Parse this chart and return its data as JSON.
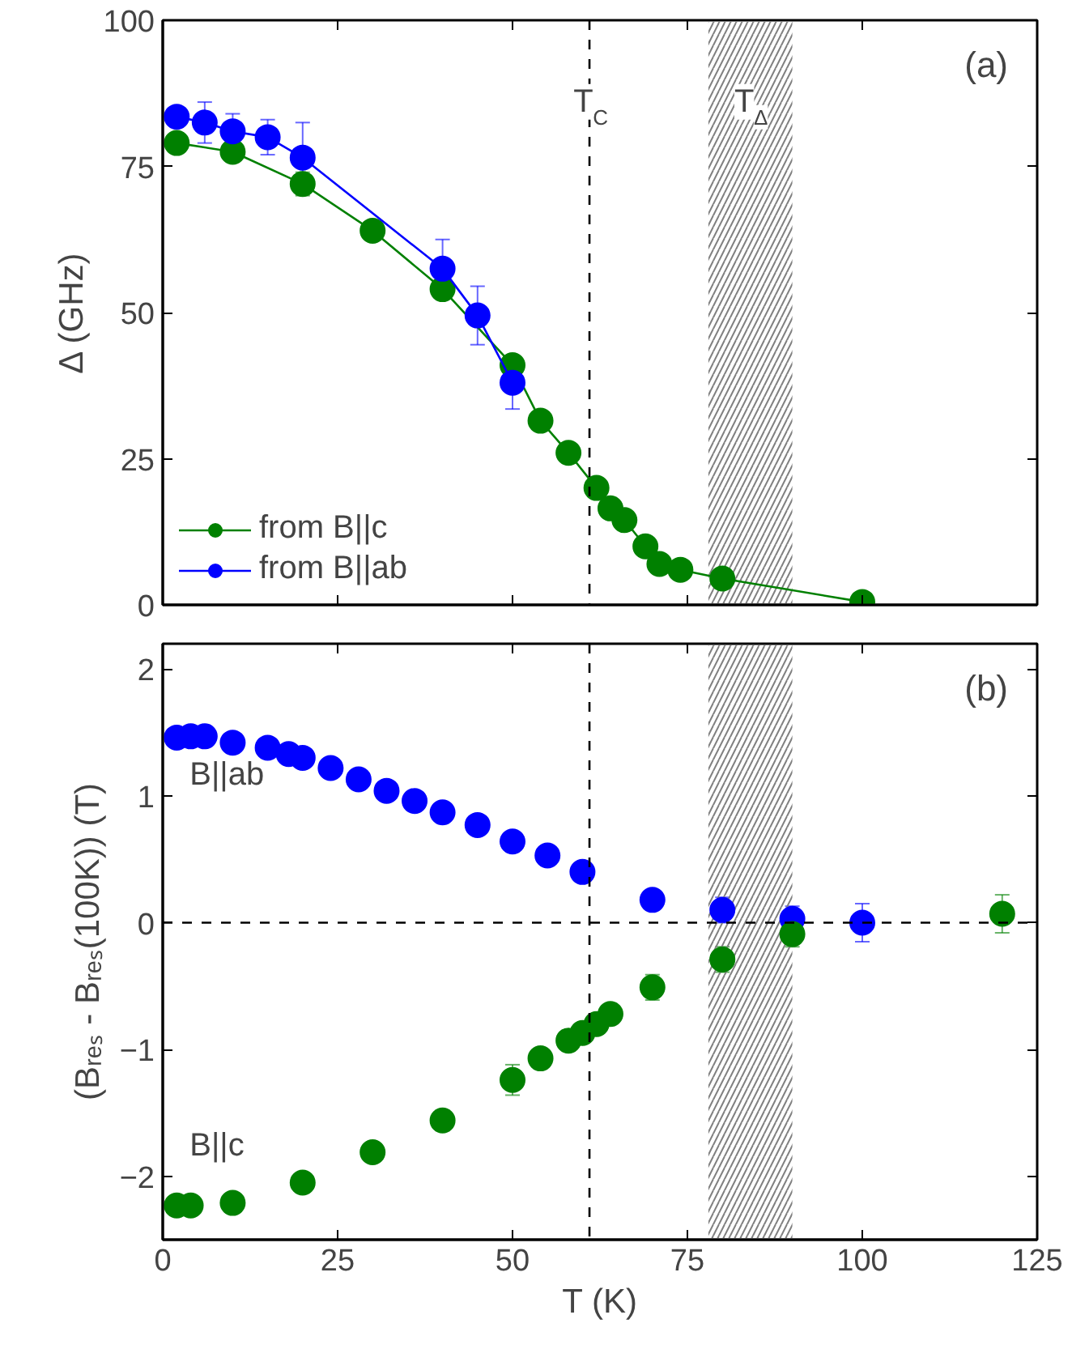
{
  "chart_data": [
    {
      "type": "line",
      "annotations": [
        "(a)"
      ],
      "ylabel": "Δ (GHz)",
      "xlim": [
        0,
        125
      ],
      "xticks": [
        0,
        25,
        50,
        75,
        100,
        125
      ],
      "ylim": [
        0,
        100
      ],
      "yticks": [
        0,
        25,
        50,
        75,
        100
      ],
      "tick_labels": "y",
      "legend": "bottom left",
      "marker": "circle",
      "line_style": "solid",
      "grid": false,
      "series": [
        {
          "name": "from B||c",
          "color": "#008000",
          "x": [
            2,
            10,
            20,
            30,
            40,
            50,
            54,
            58,
            62,
            64,
            66,
            69,
            71,
            74,
            80,
            100
          ],
          "values": [
            79,
            77.5,
            72,
            64,
            54,
            41,
            31.5,
            26,
            20,
            16.5,
            14.5,
            10,
            7,
            6,
            4.5,
            0.5
          ],
          "errors": [
            null,
            null,
            2,
            null,
            1.5,
            null,
            null,
            null,
            null,
            null,
            null,
            null,
            null,
            null,
            null,
            null
          ]
        },
        {
          "name": "from B||ab",
          "color": "#0000ff",
          "x": [
            2,
            6,
            10,
            15,
            20,
            40,
            45,
            50
          ],
          "values": [
            83.5,
            82.5,
            81,
            80,
            76.5,
            57.5,
            49.5,
            38
          ],
          "errors": [
            null,
            3.5,
            3,
            3,
            6,
            5,
            5,
            4.5
          ]
        }
      ],
      "ref_lines": [
        {
          "axis": "x",
          "value": 61,
          "label": "T$_{C}$",
          "line_style": "dashed",
          "color": "#000000"
        }
      ],
      "bands": [
        {
          "axis": "x",
          "from": 78,
          "to": 90,
          "label": "T$_{Δ}$",
          "color": "#808080"
        }
      ]
    },
    {
      "type": "scatter",
      "annotations": [
        "(b)"
      ],
      "xlabel": "T (K)",
      "ylabel": "(Bᵣₑₛ - Bᵣₑₛ(100K)) (T)",
      "xlim": [
        0,
        125
      ],
      "xticks": [
        0,
        25,
        50,
        75,
        100,
        125
      ],
      "ylim": [
        -2.5,
        2.2
      ],
      "yticks": [
        -2,
        -1,
        0,
        1,
        2
      ],
      "legend": false,
      "marker": "circle",
      "grid": false,
      "series": [
        {
          "name": "B||ab",
          "color": "#0000ff",
          "x": [
            2,
            4,
            6,
            10,
            15,
            18,
            20,
            24,
            28,
            32,
            36,
            40,
            45,
            50,
            55,
            60,
            70,
            80,
            90,
            100
          ],
          "values": [
            1.46,
            1.47,
            1.47,
            1.42,
            1.38,
            1.33,
            1.3,
            1.22,
            1.13,
            1.04,
            0.96,
            0.87,
            0.77,
            0.64,
            0.53,
            0.4,
            0.18,
            0.1,
            0.03,
            0.0
          ],
          "errors": [
            0.06,
            0.08,
            0.06,
            0.06,
            0.06,
            0.05,
            0.05,
            0.05,
            0.05,
            0.05,
            0.05,
            0.05,
            0.05,
            0.05,
            0.05,
            0.05,
            0.05,
            0.1,
            0.1,
            0.15
          ]
        },
        {
          "name": "B||c",
          "color": "#008000",
          "x": [
            2,
            4,
            10,
            20,
            30,
            40,
            50,
            54,
            58,
            60,
            62,
            64,
            70,
            80,
            90,
            120
          ],
          "values": [
            -2.23,
            -2.23,
            -2.21,
            -2.05,
            -1.81,
            -1.56,
            -1.24,
            -1.07,
            -0.93,
            -0.87,
            -0.8,
            -0.72,
            -0.51,
            -0.29,
            -0.09,
            0.07
          ],
          "errors": [
            null,
            null,
            null,
            null,
            null,
            0.08,
            0.12,
            0.04,
            0.05,
            0.05,
            0.05,
            0.05,
            0.1,
            0.1,
            0.1,
            0.15
          ]
        }
      ],
      "ref_lines": [
        {
          "axis": "x",
          "value": 61,
          "label": null,
          "line_style": "dashed",
          "color": "#000000"
        },
        {
          "axis": "y",
          "value": 0,
          "label": null,
          "line_style": "dashed",
          "color": "#000000"
        }
      ],
      "bands": [
        {
          "axis": "x",
          "from": 78,
          "to": 90,
          "label": null,
          "color": "#808080"
        }
      ]
    }
  ]
}
